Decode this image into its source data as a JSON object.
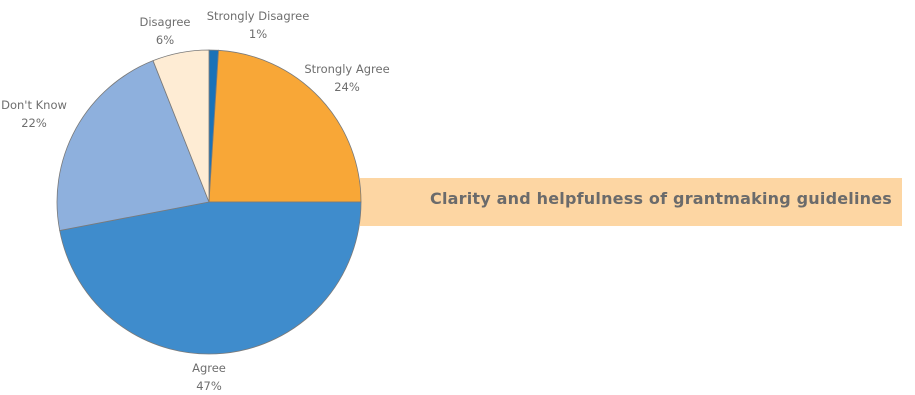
{
  "chart_data": {
    "type": "pie",
    "title": "Clarity and helpfulness of grantmaking guidelines",
    "categories": [
      "Strongly Disagree",
      "Strongly Agree",
      "Agree",
      "Don't Know",
      "Disagree"
    ],
    "values": [
      1,
      24,
      47,
      22,
      6
    ],
    "value_labels": [
      "1%",
      "24%",
      "47%",
      "22%",
      "6%"
    ],
    "colors": [
      "#1a72b8",
      "#f8a737",
      "#3f8ccc",
      "#8eb0dd",
      "#feecd4"
    ],
    "legend": "none",
    "slice_border_color": "#7a7a7a"
  }
}
